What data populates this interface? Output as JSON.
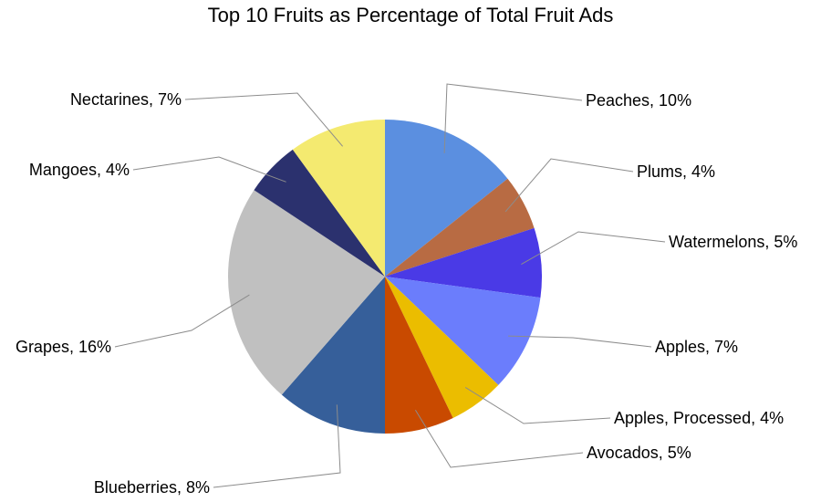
{
  "chart_data": {
    "type": "pie",
    "title": "Top 10 Fruits as Percentage of Total Fruit Ads",
    "slices": [
      {
        "name": "Peaches",
        "value": 10,
        "label": "Peaches, 10%",
        "color": "#5b8fe0"
      },
      {
        "name": "Plums",
        "value": 4,
        "label": "Plums, 4%",
        "color": "#b86b43"
      },
      {
        "name": "Watermelons",
        "value": 5,
        "label": "Watermelons, 5%",
        "color": "#4a3ae6"
      },
      {
        "name": "Apples",
        "value": 7,
        "label": "Apples, 7%",
        "color": "#6b7dfc"
      },
      {
        "name": "Apples, Processed",
        "value": 4,
        "label": "Apples, Processed, 4%",
        "color": "#ebbd00"
      },
      {
        "name": "Avocados",
        "value": 5,
        "label": "Avocados, 5%",
        "color": "#c94a00"
      },
      {
        "name": "Blueberries",
        "value": 8,
        "label": "Blueberries, 8%",
        "color": "#365f9a"
      },
      {
        "name": "Grapes",
        "value": 16,
        "label": "Grapes, 16%",
        "color": "#c0c0c0"
      },
      {
        "name": "Mangoes",
        "value": 4,
        "label": "Mangoes, 4%",
        "color": "#2b316e"
      },
      {
        "name": "Nectarines",
        "value": 7,
        "label": "Nectarines, 7%",
        "color": "#f4ea70"
      }
    ],
    "legend": "none"
  }
}
